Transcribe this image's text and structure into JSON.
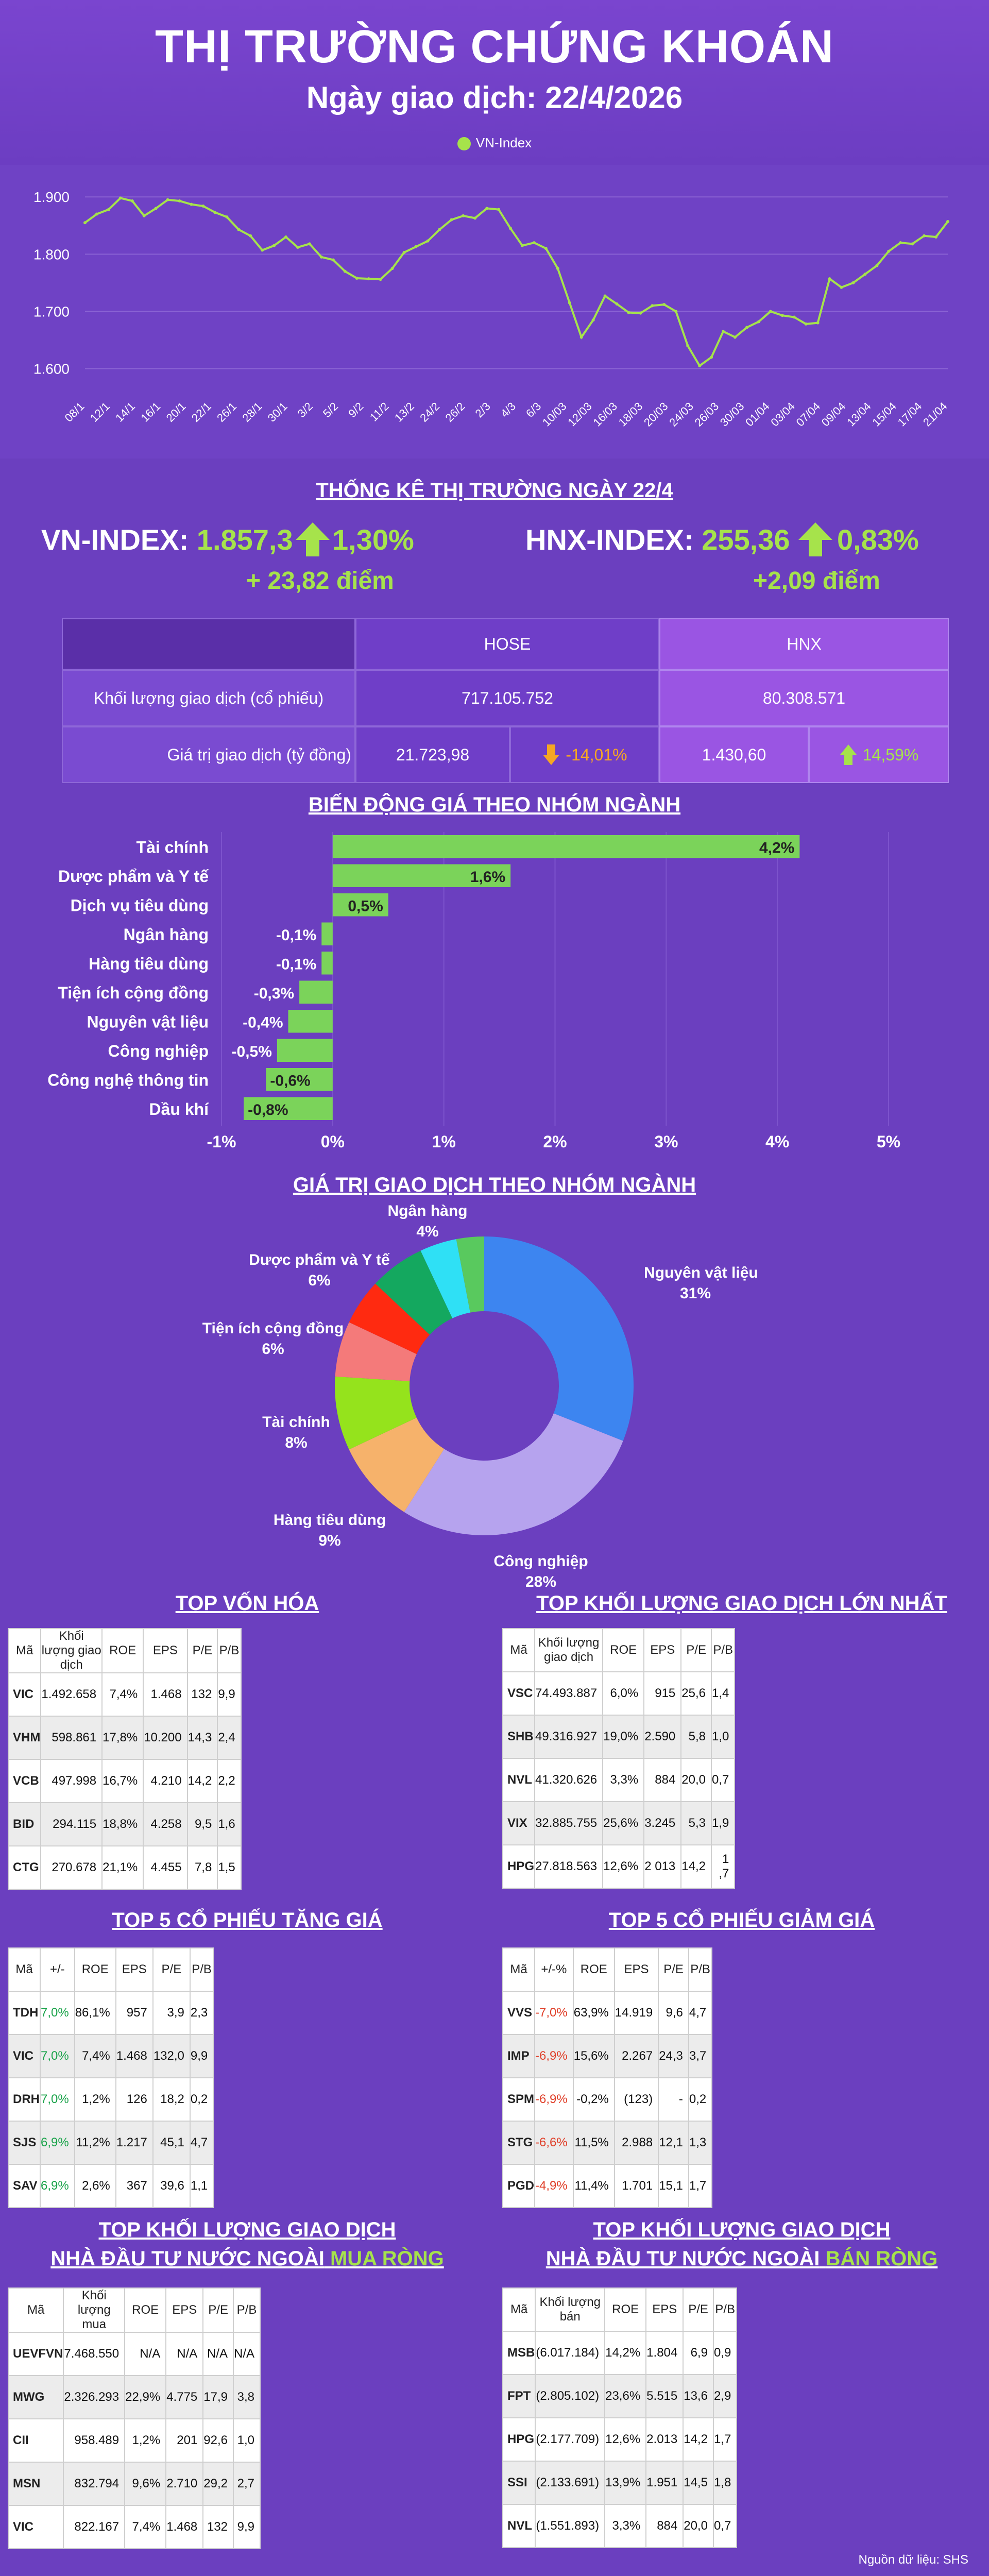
{
  "header": {
    "title": "THỊ TRƯỜNG CHỨNG KHOÁN",
    "subtitle": "Ngày giao dịch: 22/4/2026",
    "legend_label": "VN-Index",
    "legend_color": "#a6e34b"
  },
  "chart_data": [
    {
      "type": "line",
      "title": "",
      "series": [
        {
          "name": "VN-Index",
          "color": "#a6e34b",
          "values": [
            1855,
            1870,
            1878,
            1898,
            1893,
            1867,
            1880,
            1895,
            1893,
            1887,
            1884,
            1873,
            1865,
            1843,
            1832,
            1807,
            1815,
            1830,
            1812,
            1818,
            1795,
            1790,
            1770,
            1758,
            1757,
            1756,
            1775,
            1803,
            1813,
            1823,
            1843,
            1860,
            1867,
            1863,
            1880,
            1878,
            1845,
            1815,
            1820,
            1810,
            1775,
            1715,
            1655,
            1685,
            1727,
            1713,
            1698,
            1697,
            1710,
            1712,
            1700,
            1640,
            1605,
            1620,
            1665,
            1655,
            1672,
            1682,
            1700,
            1693,
            1690,
            1678,
            1680,
            1757,
            1742,
            1750,
            1765,
            1780,
            1805,
            1820,
            1818,
            1832,
            1830,
            1857
          ]
        }
      ],
      "x_ticks": [
        "08/1",
        "12/1",
        "14/1",
        "16/1",
        "20/1",
        "22/1",
        "26/1",
        "28/1",
        "30/1",
        "3/2",
        "5/2",
        "9/2",
        "11/2",
        "13/2",
        "24/2",
        "26/2",
        "2/3",
        "4/3",
        "6/3",
        "10/03",
        "12/03",
        "16/03",
        "18/03",
        "20/03",
        "24/03",
        "26/03",
        "30/03",
        "01/04",
        "03/04",
        "07/04",
        "09/04",
        "13/04",
        "15/04",
        "17/04",
        "21/04"
      ],
      "ylim": [
        1560,
        1920
      ],
      "y_ticks": [
        "1.600",
        "1.700",
        "1.800",
        "1.900"
      ],
      "y_tick_values": [
        1600,
        1700,
        1800,
        1900
      ],
      "grid": true
    },
    {
      "type": "bar",
      "title": "BIẾN ĐỘNG GIÁ THEO NHÓM NGÀNH",
      "categories": [
        "Tài chính",
        "Dược phẩm và Y tế",
        "Dịch vụ tiêu dùng",
        "Ngân hàng",
        "Hàng tiêu dùng",
        "Tiện ích cộng đồng",
        "Nguyên vật liệu",
        "Công nghiệp",
        "Công nghệ thông tin",
        "Dầu khí"
      ],
      "values": [
        4.2,
        1.6,
        0.5,
        -0.1,
        -0.1,
        -0.3,
        -0.4,
        -0.5,
        -0.6,
        -0.8
      ],
      "value_labels": [
        "4,2%",
        "1,6%",
        "0,5%",
        "-0,1%",
        "-0,1%",
        "-0,3%",
        "-0,4%",
        "-0,5%",
        "-0,6%",
        "-0,8%"
      ],
      "xlim": [
        -1,
        5
      ],
      "x_ticks": [
        "-1%",
        "0%",
        "1%",
        "2%",
        "3%",
        "4%",
        "5%"
      ],
      "x_tick_values": [
        -1,
        0,
        1,
        2,
        3,
        4,
        5
      ],
      "bar_color": "#7bd35a",
      "grid": true
    },
    {
      "type": "pie",
      "title": "GIÁ TRỊ GIAO DỊCH THEO NHÓM NGÀNH",
      "slices": [
        {
          "label": "Nguyên vật liệu",
          "value": 31,
          "value_label": "31%",
          "color": "#3d85f0"
        },
        {
          "label": "Công nghiệp",
          "value": 28,
          "value_label": "28%",
          "color": "#b6a3ee"
        },
        {
          "label": "Hàng tiêu dùng",
          "value": 9,
          "value_label": "9%",
          "color": "#f6b26b"
        },
        {
          "label": "Tài chính",
          "value": 8,
          "value_label": "8%",
          "color": "#95e31c"
        },
        {
          "label": "Tiện ích cộng đồng",
          "value": 6,
          "value_label": "6%",
          "color": "#f47a7a"
        },
        {
          "label": "",
          "value": 5,
          "value_label": "",
          "color": "#ff2a10"
        },
        {
          "label": "Dược phẩm và Y tế",
          "value": 6,
          "value_label": "6%",
          "color": "#14a85f"
        },
        {
          "label": "Ngân hàng",
          "value": 4,
          "value_label": "4%",
          "color": "#2fe0f5"
        },
        {
          "label": "",
          "value": 3,
          "value_label": "",
          "color": "#59c95e"
        }
      ]
    }
  ],
  "stats": {
    "title": "THỐNG KÊ THỊ TRƯỜNG NGÀY 22/4",
    "vn_label": "VN-INDEX:",
    "vn_value": "1.857,3",
    "vn_pct": "1,30%",
    "vn_points": "+ 23,82 điểm",
    "hnx_label": "HNX-INDEX:",
    "hnx_value": "255,36",
    "hnx_pct": "0,83%",
    "hnx_points": "+2,09 điểm",
    "col_hose": "HOSE",
    "col_hnx": "HNX",
    "row1_label": "Khối lượng giao dịch (cổ phiếu)",
    "row1_hose": "717.105.752",
    "row1_hnx": "80.308.571",
    "row2_label": "Giá trị giao dịch (tỷ đồng)",
    "row2_hose": "21.723,98",
    "row2_hose_change": "-14,01%",
    "row2_hnx": "1.430,60",
    "row2_hnx_change": "14,59%"
  },
  "tables": {
    "top_cap": {
      "title": "TOP VỐN HÓA",
      "headers": [
        "Mã",
        "Khối lượng giao dịch",
        "ROE",
        "EPS",
        "P/E",
        "P/B"
      ],
      "rows": [
        [
          "VIC",
          "1.492.658",
          "7,4%",
          "1.468",
          "132",
          "9,9"
        ],
        [
          "VHM",
          "598.861",
          "17,8%",
          "10.200",
          "14,3",
          "2,4"
        ],
        [
          "VCB",
          "497.998",
          "16,7%",
          "4.210",
          "14,2",
          "2,2"
        ],
        [
          "BID",
          "294.115",
          "18,8%",
          "4.258",
          "9,5",
          "1,6"
        ],
        [
          "CTG",
          "270.678",
          "21,1%",
          "4.455",
          "7,8",
          "1,5"
        ]
      ]
    },
    "top_volume": {
      "title": "TOP KHỐI LƯỢNG GIAO DỊCH LỚN NHẤT",
      "headers": [
        "Mã",
        "Khối lượng giao dịch",
        "ROE",
        "EPS",
        "P/E",
        "P/B"
      ],
      "rows": [
        [
          "VSC",
          "74.493.887",
          "6,0%",
          "915",
          "25,6",
          "1,4"
        ],
        [
          "SHB",
          "49.316.927",
          "19,0%",
          "2.590",
          "5,8",
          "1,0"
        ],
        [
          "NVL",
          "41.320.626",
          "3,3%",
          "884",
          "20,0",
          "0,7"
        ],
        [
          "VIX",
          "32.885.755",
          "25,6%",
          "3.245",
          "5,3",
          "1,9"
        ],
        [
          "HPG",
          "27.818.563",
          "12,6%",
          "2 013",
          "14,2",
          "1 ,7"
        ]
      ]
    },
    "top_gain": {
      "title": "TOP 5 CỔ PHIẾU TĂNG GIÁ",
      "headers": [
        "Mã",
        "+/-",
        "ROE",
        "EPS",
        "P/E",
        "P/B"
      ],
      "rows": [
        [
          "TDH",
          "7,0%",
          "86,1%",
          "957",
          "3,9",
          "2,3"
        ],
        [
          "VIC",
          "7,0%",
          "7,4%",
          "1.468",
          "132,0",
          "9,9"
        ],
        [
          "DRH",
          "7,0%",
          "1,2%",
          "126",
          "18,2",
          "0,2"
        ],
        [
          "SJS",
          "6,9%",
          "11,2%",
          "1.217",
          "45,1",
          "4,7"
        ],
        [
          "SAV",
          "6,9%",
          "2,6%",
          "367",
          "39,6",
          "1,1"
        ]
      ]
    },
    "top_loss": {
      "title": "TOP 5 CỔ PHIẾU GIẢM GIÁ",
      "headers": [
        "Mã",
        "+/-%",
        "ROE",
        "EPS",
        "P/E",
        "P/B"
      ],
      "rows": [
        [
          "VVS",
          "-7,0%",
          "63,9%",
          "14.919",
          "9,6",
          "4,7"
        ],
        [
          "IMP",
          "-6,9%",
          "15,6%",
          "2.267",
          "24,3",
          "3,7"
        ],
        [
          "SPM",
          "-6,9%",
          "-0,2%",
          "(123)",
          "-",
          "0,2"
        ],
        [
          "STG",
          "-6,6%",
          "11,5%",
          "2.988",
          "12,1",
          "1,3"
        ],
        [
          "PGD",
          "-4,9%",
          "11,4%",
          "1.701",
          "15,1",
          "1,7"
        ]
      ]
    },
    "foreign_buy": {
      "title_line1": "TOP KHỐI LƯỢNG GIAO DỊCH",
      "title_line2_prefix": "NHÀ ĐẦU TƯ NƯỚC NGOÀI",
      "title_line2_highlight": "MUA RÒNG",
      "headers": [
        "Mã",
        "Khối lượng mua",
        "ROE",
        "EPS",
        "P/E",
        "P/B"
      ],
      "rows": [
        [
          "UEVFVN",
          "7.468.550",
          "N/A",
          "N/A",
          "N/A",
          "N/A"
        ],
        [
          "MWG",
          "2.326.293",
          "22,9%",
          "4.775",
          "17,9",
          "3,8"
        ],
        [
          "CII",
          "958.489",
          "1,2%",
          "201",
          "92,6",
          "1,0"
        ],
        [
          "MSN",
          "832.794",
          "9,6%",
          "2.710",
          "29,2",
          "2,7"
        ],
        [
          "VIC",
          "822.167",
          "7,4%",
          "1.468",
          "132",
          "9,9"
        ]
      ]
    },
    "foreign_sell": {
      "title_line1": "TOP KHỐI LƯỢNG GIAO DỊCH",
      "title_line2_prefix": "NHÀ ĐẦU TƯ NƯỚC NGOÀI",
      "title_line2_highlight": "BÁN RÒNG",
      "headers": [
        "Mã",
        "Khối lượng bán",
        "ROE",
        "EPS",
        "P/E",
        "P/B"
      ],
      "rows": [
        [
          "MSB",
          "(6.017.184)",
          "14,2%",
          "1.804",
          "6,9",
          "0,9"
        ],
        [
          "FPT",
          "(2.805.102)",
          "23,6%",
          "5.515",
          "13,6",
          "2,9"
        ],
        [
          "HPG",
          "(2.177.709)",
          "12,6%",
          "2.013",
          "14,2",
          "1,7"
        ],
        [
          "SSI",
          "(2.133.691)",
          "13,9%",
          "1.951",
          "14,5",
          "1,8"
        ],
        [
          "NVL",
          "(1.551.893)",
          "3,3%",
          "884",
          "20,0",
          "0,7"
        ]
      ]
    }
  },
  "footer": {
    "source": "Nguồn dữ liệu: SHS"
  }
}
